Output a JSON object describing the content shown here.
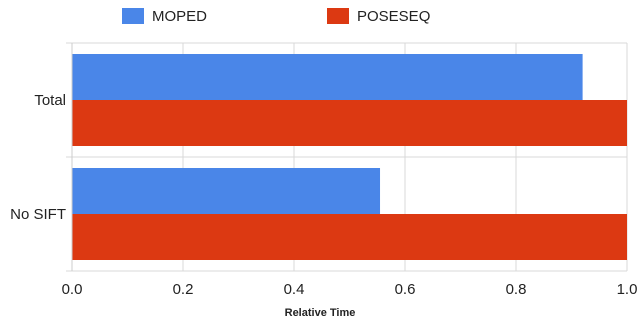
{
  "chart_data": {
    "type": "bar",
    "orientation": "horizontal",
    "categories": [
      "Total",
      "No SIFT"
    ],
    "series": [
      {
        "name": "MOPED",
        "color": "#4a86e8",
        "values": [
          0.92,
          0.555
        ]
      },
      {
        "name": "POSESEQ",
        "color": "#dc3912",
        "values": [
          1.0,
          1.0
        ]
      }
    ],
    "xlabel": "Relative Time",
    "ylabel": "",
    "xlim": [
      0,
      1
    ],
    "xticks": [
      "0.0",
      "0.2",
      "0.4",
      "0.6",
      "0.8",
      "1.0"
    ],
    "grid": true,
    "legend": "top"
  }
}
